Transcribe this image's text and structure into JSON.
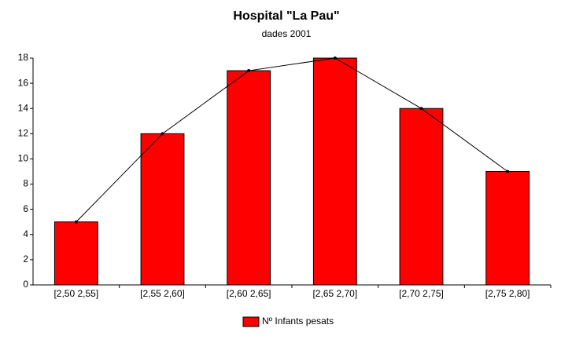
{
  "chart_data": {
    "type": "bar",
    "title": "Hospital \"La Pau\"",
    "subtitle": "dades 2001",
    "categories": [
      "[2,50 2,55]",
      "[2,55 2,60]",
      "[2,60 2,65]",
      "[2,65 2,70]",
      "[2,70 2,75]",
      "[2,75 2,80]"
    ],
    "series": [
      {
        "name": "Nº Infants pesats",
        "color": "#ff0000",
        "values": [
          5,
          12,
          17,
          18,
          14,
          9
        ]
      }
    ],
    "ylim": [
      0,
      18
    ],
    "yticks": [
      0,
      2,
      4,
      6,
      8,
      10,
      12,
      14,
      16,
      18
    ],
    "polygon": true,
    "legend": "bottom"
  }
}
